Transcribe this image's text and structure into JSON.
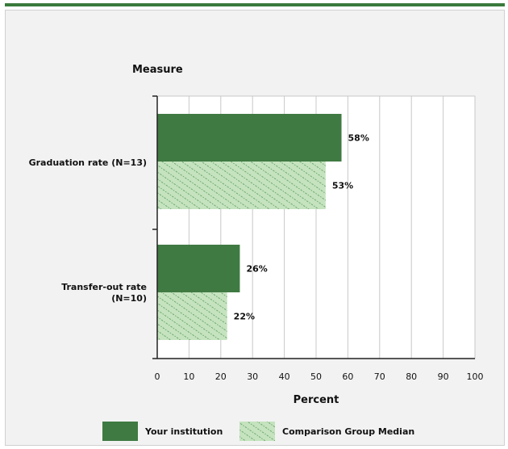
{
  "chart_data": {
    "type": "bar",
    "orientation": "horizontal",
    "ylabel": "Measure",
    "xlabel": "Percent",
    "xlim": [
      0,
      100
    ],
    "xticks": [
      0,
      10,
      20,
      30,
      40,
      50,
      60,
      70,
      80,
      90,
      100
    ],
    "grid": true,
    "legend_position": "bottom",
    "categories": [
      {
        "label_lines": [
          "Graduation rate (N=13)"
        ]
      },
      {
        "label_lines": [
          "Transfer-out rate",
          "(N=10)"
        ]
      }
    ],
    "series": [
      {
        "name": "Your institution",
        "values": [
          58,
          26
        ],
        "labels": [
          "58%",
          "26%"
        ],
        "color": "#3f7a42",
        "pattern": "solid"
      },
      {
        "name": "Comparison Group Median",
        "values": [
          53,
          22
        ],
        "labels": [
          "53%",
          "22%"
        ],
        "color": "#c5e3bf",
        "pattern": "hatch"
      }
    ]
  }
}
